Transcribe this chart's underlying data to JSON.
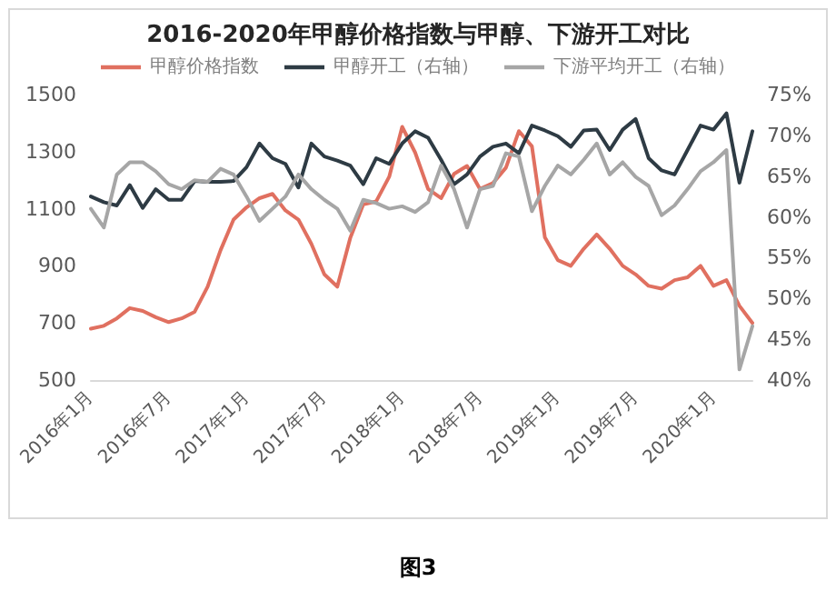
{
  "chart_data": {
    "type": "line",
    "title": "2016-2020年甲醇价格指数与甲醇、下游开工对比",
    "categories": [
      "2016年1月",
      null,
      null,
      null,
      null,
      null,
      "2016年7月",
      null,
      null,
      null,
      null,
      null,
      "2017年1月",
      null,
      null,
      null,
      null,
      null,
      "2017年7月",
      null,
      null,
      null,
      null,
      null,
      "2018年1月",
      null,
      null,
      null,
      null,
      null,
      "2018年7月",
      null,
      null,
      null,
      null,
      null,
      "2019年1月",
      null,
      null,
      null,
      null,
      null,
      "2019年7月",
      null,
      null,
      null,
      null,
      null,
      "2020年1月",
      null,
      null,
      null
    ],
    "series": [
      {
        "name": "甲醇价格指数",
        "color": "#e07060",
        "values": [
          680,
          690,
          716,
          752,
          742,
          720,
          703,
          716,
          739,
          827,
          955,
          1062,
          1105,
          1137,
          1152,
          1094,
          1062,
          977,
          870,
          827,
          998,
          1115,
          1126,
          1212,
          1387,
          1297,
          1169,
          1137,
          1222,
          1250,
          1169,
          1190,
          1244,
          1372,
          1319,
          1000,
          920,
          900,
          960,
          1010,
          960,
          900,
          870,
          830,
          820,
          850,
          860,
          900,
          830,
          850,
          760,
          700
        ]
      },
      {
        "name": "甲醇开工（右轴）",
        "color": "#2e3b44",
        "axis": "y2",
        "values": [
          62.5,
          61.8,
          61.4,
          63.9,
          61.1,
          63.4,
          62.1,
          62.1,
          64.4,
          64.3,
          64.3,
          64.4,
          66.1,
          69.0,
          67.2,
          66.5,
          63.6,
          69.0,
          67.4,
          66.9,
          66.3,
          64.0,
          67.2,
          66.5,
          69.0,
          70.5,
          69.7,
          67.0,
          64.0,
          65.2,
          67.4,
          68.6,
          69.0,
          67.8,
          71.2,
          70.6,
          69.9,
          68.6,
          70.6,
          70.7,
          68.2,
          70.7,
          72.0,
          67.2,
          65.7,
          65.2,
          68.2,
          71.2,
          70.7,
          72.7,
          64.2,
          70.5
        ]
      },
      {
        "name": "下游平均开工（右轴）",
        "color": "#a6a6a6",
        "axis": "y2",
        "values": [
          61.0,
          58.7,
          65.2,
          66.7,
          66.7,
          65.6,
          64.0,
          63.4,
          64.5,
          64.3,
          65.9,
          65.2,
          62.5,
          59.5,
          61.0,
          62.5,
          65.2,
          63.4,
          62.1,
          61.0,
          58.3,
          62.1,
          61.7,
          61.0,
          61.3,
          60.6,
          61.8,
          66.3,
          63.4,
          58.7,
          63.4,
          63.8,
          67.8,
          67.4,
          60.7,
          63.8,
          66.3,
          65.2,
          67.0,
          69.0,
          65.2,
          66.7,
          64.9,
          63.8,
          60.2,
          61.4,
          63.4,
          65.6,
          66.7,
          68.2,
          41.3,
          46.6
        ]
      }
    ],
    "ylim": [
      500,
      1500
    ],
    "yticks": [
      500,
      700,
      900,
      1100,
      1300,
      1500
    ],
    "y2lim": [
      40,
      75
    ],
    "y2ticks": [
      {
        "value": 40,
        "label": "40%"
      },
      {
        "value": 45,
        "label": "45%"
      },
      {
        "value": 50,
        "label": "50%"
      },
      {
        "value": 55,
        "label": "55%"
      },
      {
        "value": 60,
        "label": "60%"
      },
      {
        "value": 65,
        "label": "65%"
      },
      {
        "value": 70,
        "label": "70%"
      },
      {
        "value": 75,
        "label": "75%"
      }
    ],
    "legend": "top",
    "grid": false,
    "marker": "none",
    "line_style": "solid",
    "annotations": [
      "图3"
    ]
  }
}
